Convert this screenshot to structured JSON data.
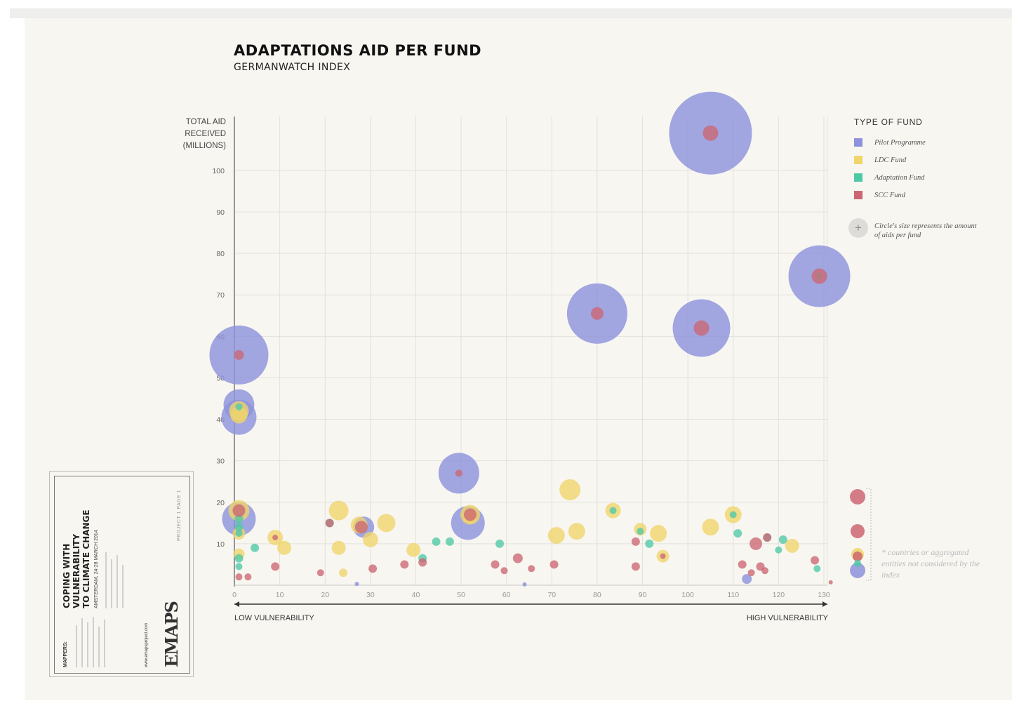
{
  "page": {
    "title": "ADAPTATIONS AID PER FUND",
    "subtitle": "GERMANWATCH INDEX"
  },
  "card": {
    "heading": "COPING WITH\nVULNERABILITY\nTO CLIMATE CHANGE",
    "date": "AMSTERDAM, 24-28 MARCH 2014",
    "logo": "EMAPS",
    "url": "www.emapsproject.com",
    "mappers_label": "MAPPERS:",
    "page_label": "PROJECT 1 PAGE 1"
  },
  "legend": {
    "title": "TYPE OF FUND",
    "items": [
      {
        "label": "Pilot Programme",
        "color": "#8e92dc"
      },
      {
        "label": "LDC Fund",
        "color": "#f0d56a"
      },
      {
        "label": "Adaptation Fund",
        "color": "#4ec9a6"
      },
      {
        "label": "SCC Fund",
        "color": "#cc6672"
      }
    ],
    "size_icon": "plus-circle-icon",
    "size_note": "Circle's size represents the amount of aids per fund"
  },
  "footnote": "* countries or aggregated entities not considered by the index",
  "chart_data": {
    "type": "scatter",
    "title": "ADAPTATIONS AID PER FUND",
    "subtitle": "GERMANWATCH INDEX",
    "xlabel_left": "LOW VULNERABILITY",
    "xlabel_right": "HIGH VULNERABILITY",
    "ylabel": "TOTAL AID\nRECEIVED\n(MILLIONS)",
    "xlim": [
      0,
      130
    ],
    "ylim": [
      0,
      113
    ],
    "xticks": [
      0,
      10,
      20,
      30,
      40,
      50,
      60,
      70,
      80,
      90,
      100,
      110,
      120,
      130
    ],
    "yticks": [
      10,
      20,
      30,
      40,
      50,
      60,
      70,
      80,
      90,
      100
    ],
    "grid": true,
    "legend_position": "right",
    "series": [
      {
        "name": "Pilot Programme",
        "color": "#8e92dc",
        "points": [
          {
            "x": 105,
            "y": 109,
            "r": 59
          },
          {
            "x": 129,
            "y": 74.5,
            "r": 44
          },
          {
            "x": 80,
            "y": 65.5,
            "r": 43
          },
          {
            "x": 103,
            "y": 62,
            "r": 41
          },
          {
            "x": 1,
            "y": 55.5,
            "r": 42
          },
          {
            "x": 1,
            "y": 40.5,
            "r": 25
          },
          {
            "x": 1,
            "y": 43.5,
            "r": 22
          },
          {
            "x": 49.5,
            "y": 27,
            "r": 29
          },
          {
            "x": 51.5,
            "y": 15,
            "r": 24
          },
          {
            "x": 1,
            "y": 16,
            "r": 24
          },
          {
            "x": 28.5,
            "y": 14,
            "r": 15
          },
          {
            "x": 113,
            "y": 1.5,
            "r": 7
          },
          {
            "x": 27,
            "y": 0.3,
            "r": 3
          },
          {
            "x": 64,
            "y": 0.2,
            "r": 3
          }
        ]
      },
      {
        "name": "LDC Fund",
        "color": "#f0d56a",
        "points": [
          {
            "x": 1,
            "y": 42,
            "r": 14
          },
          {
            "x": 1,
            "y": 41,
            "r": 12
          },
          {
            "x": 1,
            "y": 18,
            "r": 15
          },
          {
            "x": 1,
            "y": 12.5,
            "r": 9
          },
          {
            "x": 1,
            "y": 7.5,
            "r": 8
          },
          {
            "x": 9,
            "y": 11.5,
            "r": 11
          },
          {
            "x": 11,
            "y": 9,
            "r": 10
          },
          {
            "x": 23,
            "y": 18,
            "r": 14
          },
          {
            "x": 23,
            "y": 9,
            "r": 10
          },
          {
            "x": 24,
            "y": 3,
            "r": 6
          },
          {
            "x": 27.5,
            "y": 14.5,
            "r": 12
          },
          {
            "x": 30,
            "y": 11,
            "r": 11
          },
          {
            "x": 33.5,
            "y": 15,
            "r": 13
          },
          {
            "x": 39.5,
            "y": 8.5,
            "r": 10
          },
          {
            "x": 52,
            "y": 17,
            "r": 14
          },
          {
            "x": 52,
            "y": 16.5,
            "r": 10
          },
          {
            "x": 71,
            "y": 12,
            "r": 12
          },
          {
            "x": 74,
            "y": 23,
            "r": 15
          },
          {
            "x": 75.5,
            "y": 13,
            "r": 12
          },
          {
            "x": 83.5,
            "y": 18,
            "r": 11
          },
          {
            "x": 89.5,
            "y": 13.5,
            "r": 9
          },
          {
            "x": 93.5,
            "y": 12.5,
            "r": 12
          },
          {
            "x": 94.5,
            "y": 7,
            "r": 9
          },
          {
            "x": 105,
            "y": 14,
            "r": 12
          },
          {
            "x": 110,
            "y": 17,
            "r": 12
          },
          {
            "x": 123,
            "y": 9.5,
            "r": 10
          }
        ]
      },
      {
        "name": "Adaptation Fund",
        "color": "#4ec9a6",
        "points": [
          {
            "x": 1,
            "y": 43,
            "r": 5
          },
          {
            "x": 1,
            "y": 16,
            "r": 6
          },
          {
            "x": 1,
            "y": 14,
            "r": 6
          },
          {
            "x": 1,
            "y": 12.5,
            "r": 5
          },
          {
            "x": 1,
            "y": 6.5,
            "r": 6
          },
          {
            "x": 1,
            "y": 4.5,
            "r": 5
          },
          {
            "x": 4.5,
            "y": 9,
            "r": 6
          },
          {
            "x": 21,
            "y": 15,
            "r": 6
          },
          {
            "x": 41.5,
            "y": 6.5,
            "r": 6
          },
          {
            "x": 44.5,
            "y": 10.5,
            "r": 6
          },
          {
            "x": 47.5,
            "y": 10.5,
            "r": 6
          },
          {
            "x": 58.5,
            "y": 10,
            "r": 6
          },
          {
            "x": 83.5,
            "y": 18,
            "r": 5
          },
          {
            "x": 89.5,
            "y": 13,
            "r": 5
          },
          {
            "x": 91.5,
            "y": 10,
            "r": 6
          },
          {
            "x": 110,
            "y": 17,
            "r": 5
          },
          {
            "x": 111,
            "y": 12.5,
            "r": 6
          },
          {
            "x": 117.5,
            "y": 11.5,
            "r": 6
          },
          {
            "x": 121,
            "y": 11,
            "r": 6
          },
          {
            "x": 120,
            "y": 8.5,
            "r": 5
          },
          {
            "x": 128.5,
            "y": 4,
            "r": 5
          },
          {
            "x": 129,
            "y": 74.5,
            "r": 5
          }
        ]
      },
      {
        "name": "SCC Fund",
        "color": "#cc6672",
        "points": [
          {
            "x": 105,
            "y": 109,
            "r": 11
          },
          {
            "x": 129,
            "y": 74.5,
            "r": 11
          },
          {
            "x": 80,
            "y": 65.5,
            "r": 9
          },
          {
            "x": 103,
            "y": 62,
            "r": 11
          },
          {
            "x": 1,
            "y": 55.5,
            "r": 7
          },
          {
            "x": 49.5,
            "y": 27,
            "r": 5
          },
          {
            "x": 52,
            "y": 17,
            "r": 9
          },
          {
            "x": 28,
            "y": 14,
            "r": 9
          },
          {
            "x": 21,
            "y": 15,
            "r": 6
          },
          {
            "x": 1,
            "y": 18,
            "r": 9
          },
          {
            "x": 1,
            "y": 2,
            "r": 5
          },
          {
            "x": 3,
            "y": 2,
            "r": 5
          },
          {
            "x": 9,
            "y": 4.5,
            "r": 6
          },
          {
            "x": 9,
            "y": 11.5,
            "r": 4
          },
          {
            "x": 19,
            "y": 3,
            "r": 5
          },
          {
            "x": 30.5,
            "y": 4,
            "r": 6
          },
          {
            "x": 37.5,
            "y": 5,
            "r": 6
          },
          {
            "x": 41.5,
            "y": 5.5,
            "r": 6
          },
          {
            "x": 57.5,
            "y": 5,
            "r": 6
          },
          {
            "x": 59.5,
            "y": 3.5,
            "r": 5
          },
          {
            "x": 62.5,
            "y": 6.5,
            "r": 7
          },
          {
            "x": 65.5,
            "y": 4,
            "r": 5
          },
          {
            "x": 70.5,
            "y": 5,
            "r": 6
          },
          {
            "x": 88.5,
            "y": 10.5,
            "r": 6
          },
          {
            "x": 88.5,
            "y": 4.5,
            "r": 6
          },
          {
            "x": 94.5,
            "y": 7,
            "r": 4
          },
          {
            "x": 112,
            "y": 5,
            "r": 6
          },
          {
            "x": 114,
            "y": 3,
            "r": 5
          },
          {
            "x": 115,
            "y": 10,
            "r": 9
          },
          {
            "x": 116,
            "y": 4.5,
            "r": 6
          },
          {
            "x": 117,
            "y": 3.5,
            "r": 5
          },
          {
            "x": 117.5,
            "y": 11.5,
            "r": 6
          },
          {
            "x": 128,
            "y": 6,
            "r": 6
          },
          {
            "x": 131.5,
            "y": 0.7,
            "r": 3
          }
        ]
      }
    ],
    "unindexed": [
      {
        "color": "#cc6672",
        "r": 11
      },
      {
        "color": "#cc6672",
        "r": 10
      },
      {
        "color": "#f0d56a",
        "r": 9
      },
      {
        "color": "#cc6672",
        "r": 7
      },
      {
        "color": "#8e92dc",
        "r": 11
      },
      {
        "color": "#4ec9a6",
        "r": 5
      }
    ]
  }
}
